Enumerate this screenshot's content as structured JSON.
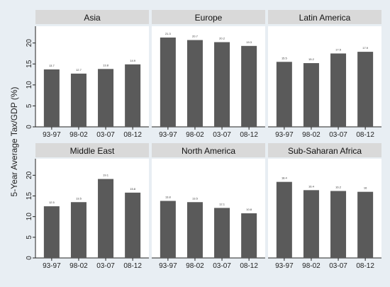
{
  "chart_data": {
    "type": "bar",
    "ylabel": "5-Year Average Tax/GDP (%)",
    "categories": [
      "93-97",
      "98-02",
      "03-07",
      "08-12"
    ],
    "ylim": [
      0,
      24
    ],
    "yticks": [
      0,
      5,
      10,
      15,
      20
    ],
    "grid": false,
    "colors": {
      "bar": "#5a5a5a",
      "panel_header": "#d9d9d9",
      "background": "#e8eef3",
      "plot": "#ffffff"
    },
    "panels": [
      {
        "title": "Asia",
        "values": [
          13.7,
          12.7,
          13.8,
          14.9
        ]
      },
      {
        "title": "Europe",
        "values": [
          21.3,
          20.7,
          20.2,
          19.3
        ]
      },
      {
        "title": "Latin America",
        "values": [
          15.5,
          15.2,
          17.5,
          17.9
        ]
      },
      {
        "title": "Middle East",
        "values": [
          12.5,
          13.5,
          19.1,
          15.8
        ]
      },
      {
        "title": "North America",
        "values": [
          13.8,
          13.5,
          12.1,
          10.8
        ]
      },
      {
        "title": "Sub-Saharan Africa",
        "values": [
          18.4,
          16.4,
          16.2,
          16.0
        ]
      }
    ]
  }
}
